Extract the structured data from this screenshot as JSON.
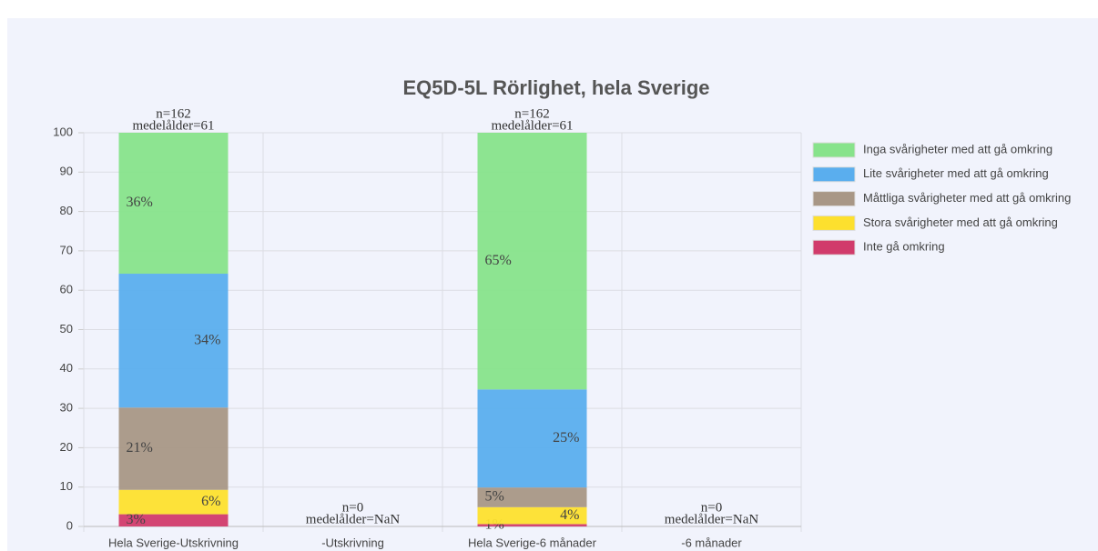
{
  "chart_data": {
    "type": "stacked_bar",
    "title": "EQ5D-5L Rörlighet, hela Sverige",
    "categories": [
      "Hela Sverige-Utskrivning",
      "-Utskrivning",
      "Hela Sverige-6 månader",
      "-6 månader"
    ],
    "annotations": [
      [
        "n=162",
        "medelålder=61"
      ],
      [
        "n=0",
        "medelålder=NaN"
      ],
      [
        "n=162",
        "medelålder=61"
      ],
      [
        "n=0",
        "medelålder=NaN"
      ]
    ],
    "series": [
      {
        "name": "Inte gå omkring",
        "color": "#d13b6b",
        "values": [
          3.1,
          null,
          0.6,
          null
        ],
        "value_labels": [
          "3%",
          null,
          "1%",
          null
        ]
      },
      {
        "name": "Stora svårigheter med att gå omkring",
        "color": "#fde02e",
        "values": [
          6.2,
          null,
          4.3,
          null
        ],
        "value_labels": [
          "6%",
          null,
          "4%",
          null
        ]
      },
      {
        "name": "Måttliga svårigheter med att gå omkring",
        "color": "#a89786",
        "values": [
          20.9,
          null,
          5.0,
          null
        ],
        "value_labels": [
          "21%",
          null,
          "5%",
          null
        ]
      },
      {
        "name": "Lite svårigheter med att gå omkring",
        "color": "#5aaeee",
        "values": [
          34.0,
          null,
          24.9,
          null
        ],
        "value_labels": [
          "34%",
          null,
          "25%",
          null
        ]
      },
      {
        "name": "Inga svårigheter med att gå omkring",
        "color": "#87e38b",
        "values": [
          35.8,
          null,
          65.2,
          null
        ],
        "value_labels": [
          "36%",
          null,
          "65%",
          null
        ]
      }
    ],
    "ylim": [
      0,
      100
    ],
    "yticks": [
      0,
      10,
      20,
      30,
      40,
      50,
      60,
      70,
      80,
      90,
      100
    ],
    "grid": true,
    "legend": "right"
  }
}
